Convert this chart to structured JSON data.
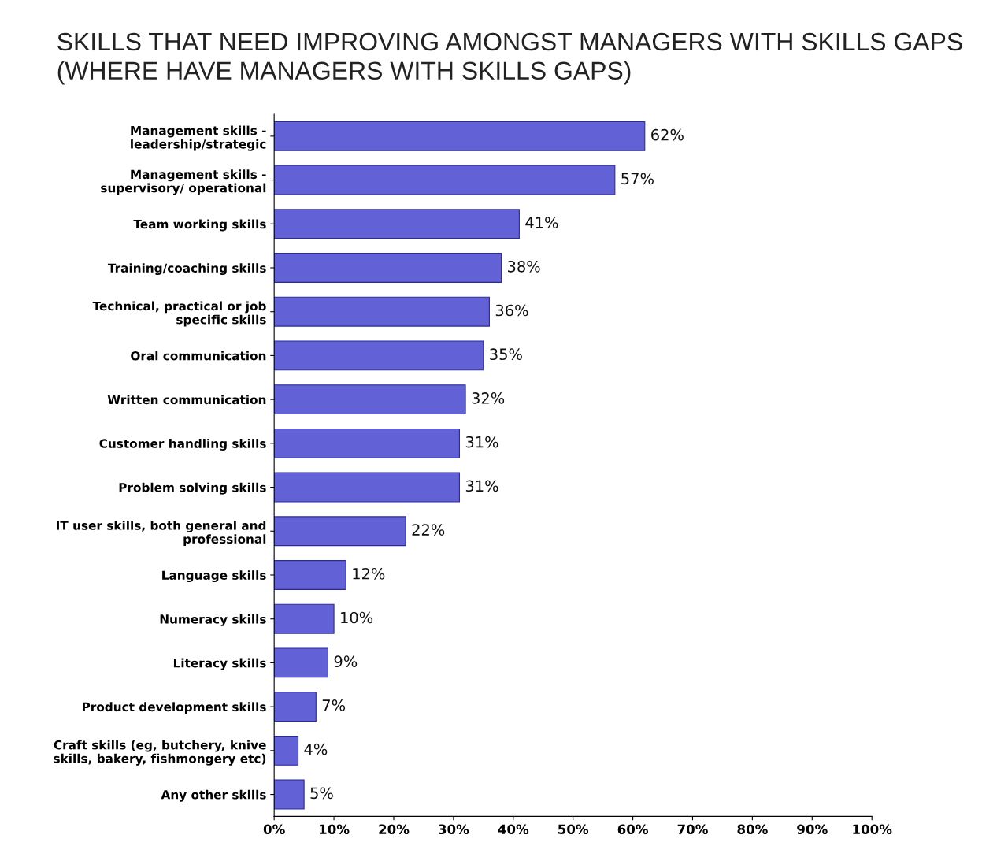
{
  "chart_data": {
    "type": "bar",
    "orientation": "horizontal",
    "title": "SKILLS THAT NEED IMPROVING AMONGST MANAGERS WITH SKILLS GAPS\n(WHERE HAVE MANAGERS WITH SKILLS GAPS)",
    "categories": [
      "Management skills -\nleadership/strategic",
      "Management skills -\nsupervisory/ operational",
      "Team working skills",
      "Training/coaching skills",
      "Technical, practical or job\nspecific skills",
      "Oral communication",
      "Written communication",
      "Customer handling skills",
      "Problem solving skills",
      "IT user skills, both general and\nprofessional",
      "Language skills",
      "Numeracy skills",
      "Literacy skills",
      "Product development skills",
      "Craft skills (eg, butchery, knive\nskills, bakery, fishmongery etc)",
      "Any other skills"
    ],
    "values": [
      62,
      57,
      41,
      38,
      36,
      35,
      32,
      31,
      31,
      22,
      12,
      10,
      9,
      7,
      4,
      5
    ],
    "value_labels": [
      "62%",
      "57%",
      "41%",
      "38%",
      "36%",
      "35%",
      "32%",
      "31%",
      "31%",
      "22%",
      "12%",
      "10%",
      "9%",
      "7%",
      "4%",
      "5%"
    ],
    "color": "#6262d6",
    "xlim": [
      0,
      100
    ],
    "xticks": [
      {
        "value": 0,
        "label": "0%"
      },
      {
        "value": 10,
        "label": "10%"
      },
      {
        "value": 20,
        "label": "20%"
      },
      {
        "value": 30,
        "label": "30%"
      },
      {
        "value": 40,
        "label": "40%"
      },
      {
        "value": 50,
        "label": "50%"
      },
      {
        "value": 60,
        "label": "60%"
      },
      {
        "value": 70,
        "label": "70%"
      },
      {
        "value": 80,
        "label": "80%"
      },
      {
        "value": 90,
        "label": "90%"
      },
      {
        "value": 100,
        "label": "100%"
      }
    ],
    "grid": false,
    "legend": false
  }
}
